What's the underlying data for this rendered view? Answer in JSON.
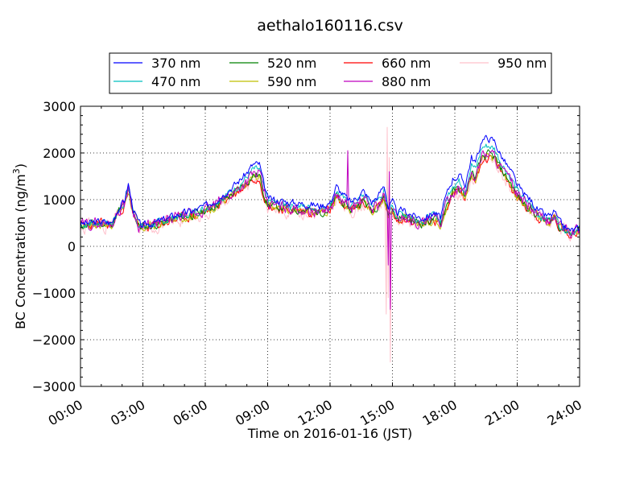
{
  "chart_data": {
    "type": "line",
    "title": "aethalo160116.csv",
    "xlabel": "Time on 2016-01-16 (JST)",
    "ylabel": {
      "main": "BC Concentration (ng/m",
      "superscript": "3",
      "close": ")"
    },
    "xlim": [
      0,
      24
    ],
    "ylim": [
      -3000,
      3000
    ],
    "x_unit": "hours",
    "x_ticks": [
      0,
      3,
      6,
      9,
      12,
      15,
      18,
      21,
      24
    ],
    "x_tick_labels": [
      "00:00",
      "03:00",
      "06:00",
      "09:00",
      "12:00",
      "15:00",
      "18:00",
      "21:00",
      "24:00"
    ],
    "y_ticks": [
      -3000,
      -2000,
      -1000,
      0,
      1000,
      2000,
      3000
    ],
    "y_tick_labels": [
      "−3000",
      "−2000",
      "−1000",
      "0",
      "1000",
      "2000",
      "3000"
    ],
    "grid": true,
    "grid_style": "dotted",
    "legend_position": "top-center (above plot)",
    "base_profile": {
      "x": [
        0,
        0.5,
        1,
        1.5,
        1.8,
        2.1,
        2.3,
        2.5,
        2.8,
        3,
        3.3,
        3.6,
        4,
        4.5,
        5,
        5.5,
        6,
        6.5,
        7,
        7.5,
        8,
        8.3,
        8.6,
        8.8,
        9,
        9.3,
        9.6,
        10,
        10.5,
        11,
        11.5,
        12,
        12.3,
        12.6,
        13,
        13.3,
        13.6,
        14,
        14.3,
        14.6,
        14.8,
        15,
        15.2,
        15.5,
        16,
        16.5,
        17,
        17.3,
        17.6,
        17.9,
        18.2,
        18.5,
        18.8,
        19,
        19.3,
        19.6,
        19.9,
        20.2,
        20.5,
        20.8,
        21,
        21.3,
        21.6,
        22,
        22.3,
        22.6,
        22.8,
        23,
        23.5,
        24
      ],
      "values": [
        450,
        480,
        500,
        470,
        750,
        900,
        1250,
        800,
        450,
        400,
        450,
        470,
        520,
        600,
        650,
        700,
        780,
        900,
        1050,
        1200,
        1400,
        1550,
        1550,
        1200,
        900,
        880,
        850,
        830,
        800,
        780,
        750,
        800,
        1100,
        950,
        800,
        900,
        1000,
        800,
        900,
        1100,
        700,
        800,
        600,
        650,
        550,
        500,
        600,
        500,
        900,
        1200,
        1250,
        1100,
        1600,
        1500,
        1950,
        2000,
        1950,
        1700,
        1500,
        1300,
        1100,
        950,
        850,
        650,
        550,
        550,
        650,
        450,
        300,
        350
      ]
    },
    "series": [
      {
        "name": "370 nm",
        "color": "#0000ff",
        "noise": 70,
        "spike": 0,
        "offset": [
          [
            0,
            0,
            1.05
          ],
          [
            17.5,
            0,
            1.22
          ],
          [
            21,
            150,
            1.05
          ],
          [
            24,
            0,
            1.05
          ]
        ],
        "seed": 3
      },
      {
        "name": "470 nm",
        "color": "#00bfbf",
        "noise": 70,
        "spike": 0,
        "offset": [
          [
            0,
            0,
            1.0
          ],
          [
            17.5,
            0,
            1.12
          ],
          [
            21,
            60,
            1.02
          ],
          [
            24,
            0,
            1.0
          ]
        ],
        "seed": 7
      },
      {
        "name": "520 nm",
        "color": "#008000",
        "noise": 80,
        "spike": 0,
        "offset": [
          [
            0,
            0,
            0.98
          ],
          [
            24,
            0,
            0.98
          ]
        ],
        "seed": 11
      },
      {
        "name": "590 nm",
        "color": "#bfbf00",
        "noise": 80,
        "spike": 0,
        "offset": [
          [
            0,
            0,
            0.96
          ],
          [
            24,
            0,
            0.96
          ]
        ],
        "seed": 17
      },
      {
        "name": "660 nm",
        "color": "#ff0000",
        "noise": 90,
        "spike": 0,
        "offset": [
          [
            0,
            0,
            0.95
          ],
          [
            24,
            0,
            0.95
          ]
        ],
        "seed": 23
      },
      {
        "name": "880 nm",
        "color": "#bf00bf",
        "noise": 110,
        "spike": 1,
        "offset": [
          [
            0,
            0,
            1.0
          ],
          [
            24,
            0,
            1.0
          ]
        ],
        "seed": 29
      },
      {
        "name": "950 nm",
        "color": "#ffc0cb",
        "noise": 130,
        "spike": 2,
        "offset": [
          [
            0,
            0,
            0.93
          ],
          [
            24,
            0,
            0.93
          ]
        ],
        "seed": 31
      }
    ],
    "spikes": [
      {
        "series": "950 nm",
        "x": [
          14.6,
          14.7,
          14.75,
          14.8,
          14.85,
          14.9,
          15.0
        ],
        "values": [
          900,
          -1450,
          2550,
          -1100,
          1900,
          -2480,
          600
        ]
      },
      {
        "series": "880 nm",
        "x": [
          12.8,
          12.85,
          12.9,
          14.75,
          14.8,
          14.85,
          14.9,
          14.95
        ],
        "values": [
          900,
          2050,
          800,
          900,
          -400,
          1600,
          -1350,
          700
        ]
      }
    ]
  }
}
